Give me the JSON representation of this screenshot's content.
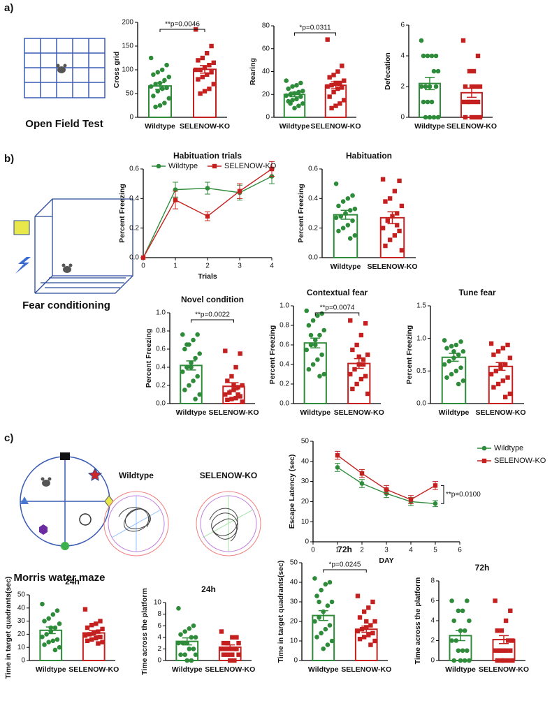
{
  "labels": {
    "panel_a": "a)",
    "panel_b": "b)",
    "panel_c": "c)",
    "open_field": "Open Field Test",
    "fear": "Fear conditioning",
    "morris": "Morris water maze",
    "track_wt": "Wildtype",
    "track_ko": "SELENOW-KO"
  },
  "chart_data": [
    {
      "type": "bar",
      "ylabel": "Cross grid",
      "categories": [
        "Wildtype",
        "SELENOW-KO"
      ],
      "colors": [
        "#2e8b3a",
        "#c4201f"
      ],
      "values": [
        66,
        101
      ],
      "errors": [
        7,
        8
      ],
      "ylim": [
        0,
        200
      ],
      "yticks": [
        0,
        50,
        100,
        150,
        200
      ],
      "annotation": "**p=0.0046",
      "points": [
        [
          125,
          110,
          100,
          95,
          90,
          85,
          78,
          72,
          70,
          65,
          62,
          60,
          55,
          45,
          40,
          30,
          25,
          22
        ],
        [
          185,
          150,
          135,
          125,
          120,
          115,
          110,
          105,
          100,
          100,
          95,
          90,
          85,
          80,
          70,
          60,
          55,
          50
        ]
      ]
    },
    {
      "type": "bar",
      "ylabel": "Rearing",
      "categories": [
        "Wildtype",
        "SELENOW-KO"
      ],
      "colors": [
        "#2e8b3a",
        "#c4201f"
      ],
      "values": [
        20,
        28
      ],
      "errors": [
        2,
        3
      ],
      "ylim": [
        0,
        80
      ],
      "yticks": [
        0,
        20,
        40,
        60,
        80
      ],
      "annotation": "*p=0.0311",
      "points": [
        [
          32,
          30,
          28,
          27,
          25,
          23,
          22,
          21,
          20,
          19,
          18,
          16,
          15,
          14,
          12,
          10,
          8,
          12
        ],
        [
          68,
          45,
          40,
          37,
          35,
          32,
          30,
          30,
          28,
          27,
          26,
          25,
          22,
          18,
          15,
          12,
          10,
          8
        ]
      ]
    },
    {
      "type": "bar",
      "ylabel": "Defecation",
      "categories": [
        "Wildtype",
        "SELENOW-KO"
      ],
      "colors": [
        "#2e8b3a",
        "#c4201f"
      ],
      "values": [
        2.2,
        1.6
      ],
      "errors": [
        0.4,
        0.3
      ],
      "ylim": [
        0,
        6
      ],
      "yticks": [
        0,
        2,
        4,
        6
      ],
      "points": [
        [
          5,
          4,
          4,
          4,
          4,
          3,
          3,
          2,
          2,
          2,
          2,
          1,
          1,
          1,
          0,
          0,
          0,
          0
        ],
        [
          5,
          4,
          3,
          3,
          2,
          2,
          2,
          2,
          1,
          1,
          1,
          1,
          1,
          0,
          0,
          0,
          0
        ]
      ]
    },
    {
      "type": "line",
      "title": "Habituation trials",
      "ylabel": "Percent Freezing",
      "xlabel": "Trials",
      "legend": "top",
      "x": [
        0,
        1,
        2,
        3,
        4
      ],
      "xlim": [
        0,
        4
      ],
      "xticks": [
        0,
        1,
        2,
        3,
        4
      ],
      "ylim": [
        0,
        0.6
      ],
      "yticks": [
        {
          "value": 0,
          "label": "0.0"
        },
        0.2,
        0.4,
        0.6
      ],
      "series": [
        {
          "name": "Wildtype",
          "color": "#2e8b3a",
          "values": [
            0,
            0.46,
            0.47,
            0.44,
            0.55
          ],
          "errors": [
            0,
            0.05,
            0.04,
            0.05,
            0.05
          ]
        },
        {
          "name": "SELENOW-KO",
          "color": "#c4201f",
          "values": [
            0,
            0.39,
            0.28,
            0.45,
            0.6
          ],
          "errors": [
            0,
            0.06,
            0.03,
            0.05,
            0.05
          ]
        }
      ]
    },
    {
      "type": "bar",
      "title": "Habituation",
      "ylabel": "Percent Freezing",
      "categories": [
        "Wildtype",
        "SELENOW-KO"
      ],
      "colors": [
        "#2e8b3a",
        "#c4201f"
      ],
      "values": [
        0.29,
        0.27
      ],
      "errors": [
        0.03,
        0.04
      ],
      "ylim": [
        0,
        0.6
      ],
      "yticks": [
        {
          "value": 0,
          "label": "0.0"
        },
        0.2,
        0.4,
        0.6
      ],
      "points": [
        [
          0.5,
          0.42,
          0.4,
          0.38,
          0.35,
          0.33,
          0.32,
          0.3,
          0.28,
          0.27,
          0.25,
          0.22,
          0.2,
          0.18,
          0.15,
          0.13,
          0.3
        ],
        [
          0.53,
          0.52,
          0.45,
          0.4,
          0.38,
          0.35,
          0.3,
          0.28,
          0.25,
          0.2,
          0.18,
          0.15,
          0.12,
          0.08,
          0.05,
          0.22
        ]
      ]
    },
    {
      "type": "bar",
      "title": "Novel condition",
      "ylabel": "Percent Freezing",
      "categories": [
        "Wildtype",
        "SELENOW-KO"
      ],
      "colors": [
        "#2e8b3a",
        "#c4201f"
      ],
      "values": [
        0.42,
        0.19
      ],
      "errors": [
        0.05,
        0.04
      ],
      "ylim": [
        0,
        1
      ],
      "yticks": [
        {
          "value": 0,
          "label": "0.0"
        },
        0.2,
        0.4,
        0.6,
        0.8,
        {
          "value": 1,
          "label": "1.0"
        }
      ],
      "annotation": "**p=0.0022",
      "points": [
        [
          0.76,
          0.76,
          0.7,
          0.65,
          0.6,
          0.55,
          0.5,
          0.45,
          0.4,
          0.35,
          0.3,
          0.25,
          0.2,
          0.15,
          0.1,
          0.05,
          0.4,
          0.65
        ],
        [
          0.58,
          0.55,
          0.4,
          0.3,
          0.25,
          0.2,
          0.18,
          0.15,
          0.12,
          0.1,
          0.08,
          0.06,
          0.05,
          0.04,
          0.02,
          0.1,
          0.2
        ]
      ]
    },
    {
      "type": "bar",
      "title": "Contextual fear",
      "ylabel": "Percent Freezing",
      "categories": [
        "Wildtype",
        "SELENOW-KO"
      ],
      "colors": [
        "#2e8b3a",
        "#c4201f"
      ],
      "values": [
        0.62,
        0.41
      ],
      "errors": [
        0.05,
        0.05
      ],
      "ylim": [
        0,
        1
      ],
      "yticks": [
        {
          "value": 0,
          "label": "0.0"
        },
        0.2,
        0.4,
        0.6,
        0.8,
        {
          "value": 1,
          "label": "1.0"
        }
      ],
      "annotation": "**p=0.0074",
      "points": [
        [
          0.95,
          0.92,
          0.9,
          0.85,
          0.8,
          0.75,
          0.7,
          0.65,
          0.6,
          0.55,
          0.5,
          0.45,
          0.4,
          0.35,
          0.3,
          0.28,
          0.6,
          0.7
        ],
        [
          0.85,
          0.82,
          0.7,
          0.6,
          0.55,
          0.5,
          0.45,
          0.4,
          0.35,
          0.3,
          0.28,
          0.25,
          0.2,
          0.15,
          0.1,
          0.4,
          0.48
        ]
      ]
    },
    {
      "type": "bar",
      "title": "Tune fear",
      "ylabel": "Percent Freezing",
      "categories": [
        "Wildtype",
        "SELENOW-KO"
      ],
      "colors": [
        "#2e8b3a",
        "#c4201f"
      ],
      "values": [
        0.71,
        0.57
      ],
      "errors": [
        0.06,
        0.06
      ],
      "ylim": [
        0,
        1.5
      ],
      "yticks": [
        {
          "value": 0,
          "label": "0.0"
        },
        0.5,
        {
          "value": 1,
          "label": "1.0"
        },
        1.5
      ],
      "points": [
        [
          0.97,
          0.95,
          0.9,
          0.88,
          0.85,
          0.8,
          0.75,
          0.7,
          0.65,
          0.6,
          0.55,
          0.5,
          0.45,
          0.4,
          0.35,
          0.3,
          0.8
        ],
        [
          0.92,
          0.9,
          0.85,
          0.8,
          0.75,
          0.7,
          0.6,
          0.55,
          0.5,
          0.45,
          0.4,
          0.35,
          0.3,
          0.25,
          0.15,
          0.1,
          0.6
        ]
      ]
    },
    {
      "type": "line",
      "ylabel": "Escape Latency (sec)",
      "xlabel": "DAY",
      "legend": "right",
      "annotation": "**p=0.0100",
      "x": [
        1,
        2,
        3,
        4,
        5
      ],
      "xlim": [
        0,
        6
      ],
      "xticks": [
        0,
        1,
        2,
        3,
        4,
        5,
        6
      ],
      "ylim": [
        0,
        50
      ],
      "yticks": [
        0,
        10,
        20,
        30,
        40,
        50
      ],
      "series": [
        {
          "name": "Wildtype",
          "color": "#2e8b3a",
          "values": [
            37,
            29,
            24,
            20,
            19
          ],
          "errors": [
            2,
            2,
            2,
            2,
            1.5
          ]
        },
        {
          "name": "SELENOW-KO",
          "color": "#c4201f",
          "values": [
            43,
            34,
            26,
            21,
            28
          ],
          "errors": [
            2,
            2,
            2,
            2,
            2
          ]
        }
      ]
    },
    {
      "type": "bar",
      "title": "24h",
      "ylabel": "Time in target quadrants(sec)",
      "categories": [
        "Wildtype",
        "SELENOW-KO"
      ],
      "colors": [
        "#2e8b3a",
        "#c4201f"
      ],
      "values": [
        23,
        21
      ],
      "errors": [
        2.5,
        1.8
      ],
      "ylim": [
        0,
        50
      ],
      "yticks": [
        0,
        10,
        20,
        30,
        40,
        50
      ],
      "points": [
        [
          43,
          38,
          35,
          32,
          30,
          28,
          25,
          22,
          20,
          18,
          16,
          15,
          14,
          12,
          10,
          8,
          25
        ],
        [
          39,
          30,
          28,
          27,
          25,
          24,
          22,
          21,
          20,
          19,
          18,
          17,
          16,
          15,
          14,
          13
        ]
      ]
    },
    {
      "type": "bar",
      "title": "24h",
      "ylabel": "Time across the platform",
      "categories": [
        "Wildtype",
        "SELENOW-KO"
      ],
      "colors": [
        "#2e8b3a",
        "#c4201f"
      ],
      "values": [
        3.3,
        2.3
      ],
      "errors": [
        0.6,
        0.4
      ],
      "ylim": [
        0,
        10
      ],
      "yticks": [
        0,
        2,
        4,
        6,
        8,
        10
      ],
      "points": [
        [
          9,
          6,
          5.5,
          5,
          4.5,
          4,
          4,
          3,
          3,
          3,
          2,
          2,
          1,
          1,
          1,
          0,
          0
        ],
        [
          5,
          4,
          4,
          3,
          3,
          3,
          2,
          2,
          2,
          2,
          2,
          1,
          1,
          1,
          1,
          0,
          0
        ]
      ]
    },
    {
      "type": "bar",
      "title": "72h",
      "ylabel": "Time in target quadrants(sec)",
      "categories": [
        "Wildtype",
        "SELENOW-KO"
      ],
      "colors": [
        "#2e8b3a",
        "#c4201f"
      ],
      "values": [
        23,
        16
      ],
      "errors": [
        2.5,
        1.6
      ],
      "ylim": [
        0,
        50
      ],
      "yticks": [
        0,
        10,
        20,
        30,
        40,
        50
      ],
      "annotation": "*p=0.0245",
      "points": [
        [
          42,
          40,
          39,
          36,
          33,
          30,
          28,
          25,
          22,
          20,
          18,
          16,
          14,
          12,
          10,
          8,
          6,
          30
        ],
        [
          33,
          30,
          27,
          25,
          22,
          20,
          18,
          17,
          16,
          15,
          14,
          13,
          12,
          11,
          10,
          8,
          20
        ]
      ]
    },
    {
      "type": "bar",
      "title": "72h",
      "ylabel": "Time across the platform",
      "categories": [
        "Wildtype",
        "SELENOW-KO"
      ],
      "colors": [
        "#2e8b3a",
        "#c4201f"
      ],
      "values": [
        2.5,
        2.1
      ],
      "errors": [
        0.5,
        0.4
      ],
      "ylim": [
        0,
        8
      ],
      "yticks": [
        0,
        2,
        4,
        6,
        8
      ],
      "points": [
        [
          6,
          6,
          5,
          5,
          4,
          4,
          3,
          3,
          2,
          2,
          1,
          1,
          1,
          0,
          0,
          0,
          0
        ],
        [
          6,
          5,
          4,
          3,
          3,
          2,
          2,
          1,
          1,
          1,
          1,
          1,
          0,
          0,
          0,
          0,
          0,
          1
        ]
      ]
    }
  ]
}
